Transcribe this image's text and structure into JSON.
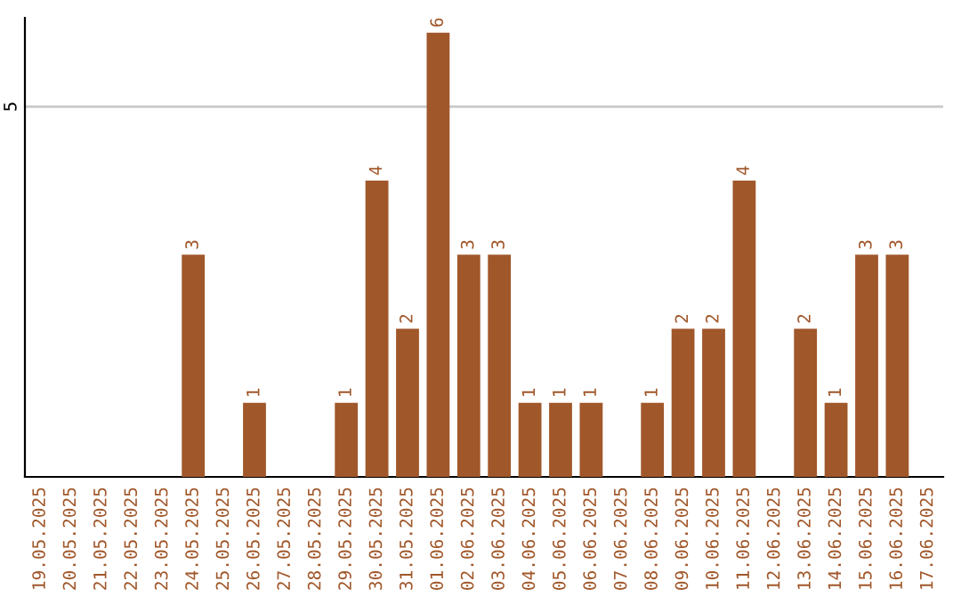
{
  "chart_data": {
    "type": "bar",
    "categories": [
      "19.05.2025",
      "20.05.2025",
      "21.05.2025",
      "22.05.2025",
      "23.05.2025",
      "24.05.2025",
      "25.05.2025",
      "26.05.2025",
      "27.05.2025",
      "28.05.2025",
      "29.05.2025",
      "30.05.2025",
      "31.05.2025",
      "01.06.2025",
      "02.06.2025",
      "03.06.2025",
      "04.06.2025",
      "05.06.2025",
      "06.06.2025",
      "07.06.2025",
      "08.06.2025",
      "09.06.2025",
      "10.06.2025",
      "11.06.2025",
      "12.06.2025",
      "13.06.2025",
      "14.06.2025",
      "15.06.2025",
      "16.06.2025",
      "17.06.2025"
    ],
    "values": [
      0,
      0,
      0,
      0,
      0,
      3,
      0,
      1,
      0,
      0,
      1,
      4,
      2,
      6,
      3,
      3,
      1,
      1,
      1,
      0,
      1,
      2,
      2,
      4,
      0,
      2,
      1,
      3,
      3,
      0
    ],
    "value_labels": [
      null,
      null,
      null,
      null,
      null,
      "3",
      null,
      "1",
      null,
      null,
      "1",
      "4",
      "2",
      "6",
      "3",
      "3",
      "1",
      "1",
      "1",
      null,
      "1",
      "2",
      "2",
      "4",
      null,
      "2",
      "1",
      "3",
      "3",
      null
    ],
    "color": "#a0572a",
    "ylim": [
      0,
      6.2
    ],
    "yticks": [
      5
    ],
    "grid": "y",
    "legend": false
  }
}
